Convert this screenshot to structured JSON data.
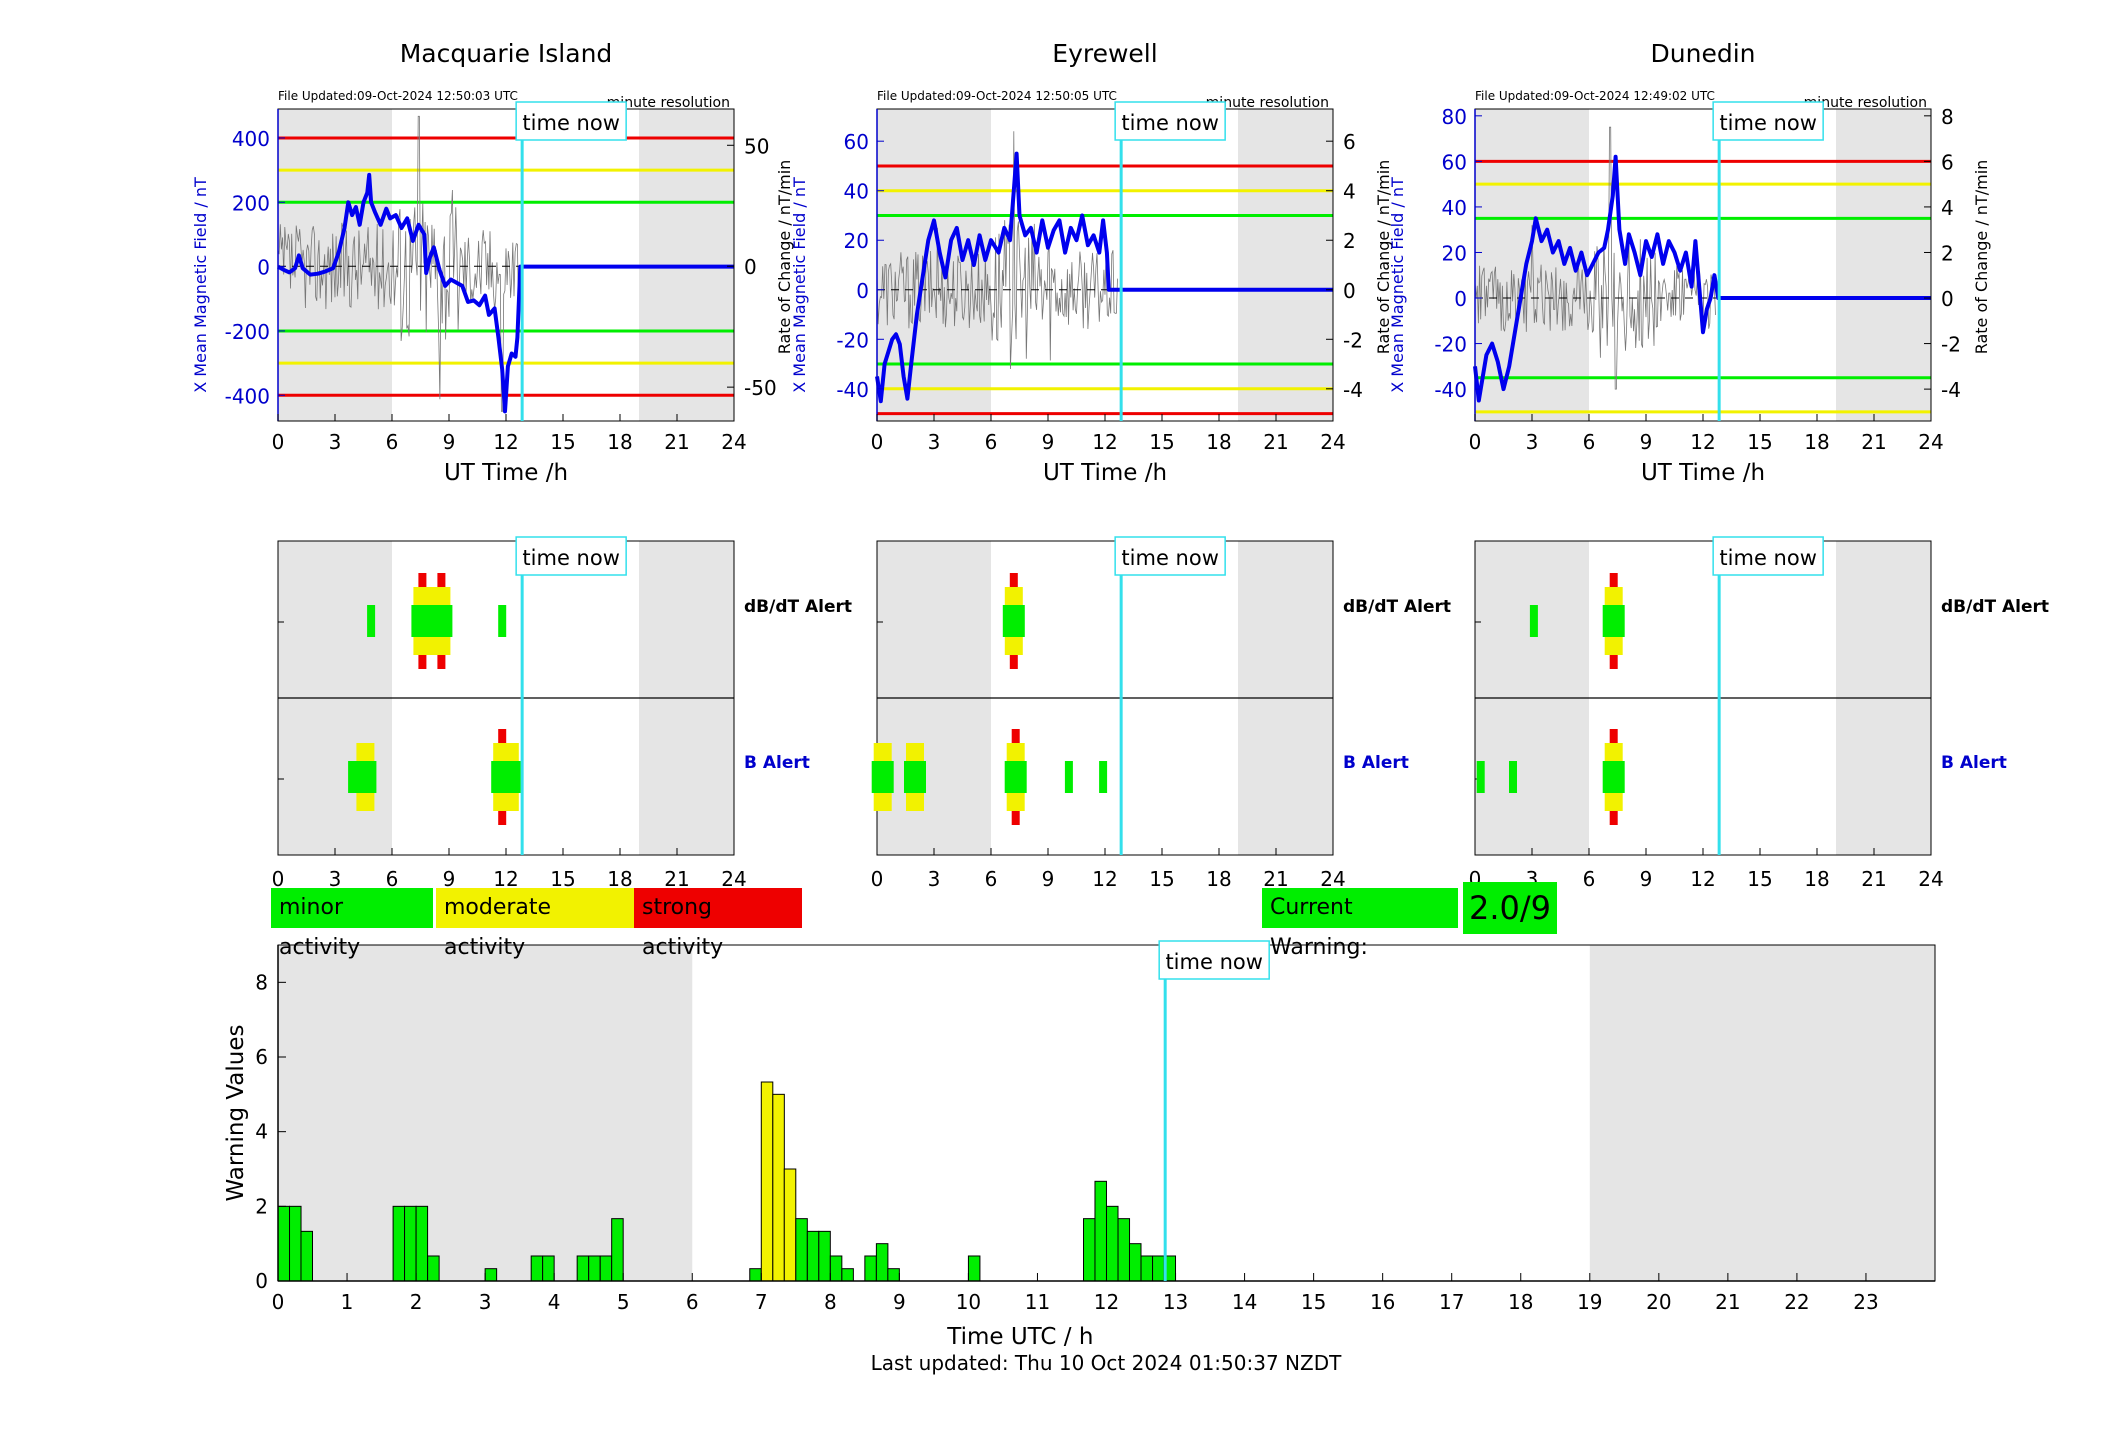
{
  "colors": {
    "night_shade": "#e5e5e5",
    "now_line": "#33e0ec",
    "field_line": "#0000ee",
    "red": "#ee0000",
    "yellow": "#f2f200",
    "green": "#00ee00",
    "axis_blue": "#0000cc"
  },
  "stations": [
    {
      "name": "Macquarie Island",
      "file_updated": "File Updated:09-Oct-2024 12:50:03 UTC",
      "resolution": "minute resolution",
      "left_label": "X Mean Magnetic Field / nT",
      "right_label": "Rate of Change / nT/min",
      "show_right_label": false,
      "ylim": [
        -480,
        490
      ],
      "yticks": [
        -400,
        -200,
        0,
        200,
        400
      ],
      "rlim": [
        -64,
        65
      ],
      "rticks": [
        -50,
        0,
        50
      ],
      "thresholds": {
        "red": [
          400,
          -400
        ],
        "yellow": [
          300,
          -300
        ],
        "green": [
          200,
          -200
        ]
      },
      "field": [
        [
          0,
          0
        ],
        [
          0.3,
          -10
        ],
        [
          0.6,
          -18
        ],
        [
          0.9,
          -5
        ],
        [
          1.1,
          35
        ],
        [
          1.3,
          -5
        ],
        [
          1.7,
          -25
        ],
        [
          2.1,
          -22
        ],
        [
          2.5,
          -15
        ],
        [
          2.9,
          -5
        ],
        [
          3.2,
          45
        ],
        [
          3.5,
          120
        ],
        [
          3.7,
          200
        ],
        [
          3.9,
          160
        ],
        [
          4.1,
          185
        ],
        [
          4.3,
          130
        ],
        [
          4.5,
          200
        ],
        [
          4.7,
          230
        ],
        [
          4.8,
          285
        ],
        [
          4.9,
          200
        ],
        [
          5.1,
          170
        ],
        [
          5.4,
          130
        ],
        [
          5.7,
          180
        ],
        [
          5.9,
          150
        ],
        [
          6.2,
          160
        ],
        [
          6.5,
          120
        ],
        [
          6.8,
          150
        ],
        [
          7.1,
          80
        ],
        [
          7.4,
          130
        ],
        [
          7.7,
          100
        ],
        [
          7.8,
          -20
        ],
        [
          8.0,
          30
        ],
        [
          8.2,
          60
        ],
        [
          8.5,
          -10
        ],
        [
          8.8,
          -60
        ],
        [
          9.1,
          -40
        ],
        [
          9.4,
          -50
        ],
        [
          9.7,
          -60
        ],
        [
          10.0,
          -110
        ],
        [
          10.3,
          -105
        ],
        [
          10.6,
          -120
        ],
        [
          10.9,
          -90
        ],
        [
          11.1,
          -150
        ],
        [
          11.4,
          -130
        ],
        [
          11.6,
          -220
        ],
        [
          11.8,
          -320
        ],
        [
          11.95,
          -450
        ],
        [
          12.1,
          -310
        ],
        [
          12.3,
          -270
        ],
        [
          12.5,
          -280
        ],
        [
          12.6,
          -220
        ],
        [
          12.75,
          0
        ],
        [
          24,
          0
        ]
      ],
      "rate_amp": 18,
      "rate_peak": [
        [
          7.4,
          62
        ],
        [
          8.5,
          -55
        ],
        [
          11.8,
          -60
        ]
      ],
      "dbdt_alerts": [
        {
          "t": 4.9,
          "level": 1
        },
        {
          "t": 7.6,
          "level": 3
        },
        {
          "t": 7.9,
          "level": 2
        },
        {
          "t": 8.2,
          "level": 2
        },
        {
          "t": 8.6,
          "level": 3
        },
        {
          "t": 11.8,
          "level": 1
        }
      ],
      "b_alerts": [
        {
          "t": 3.9,
          "level": 1
        },
        {
          "t": 4.6,
          "level": 2
        },
        {
          "t": 4.8,
          "level": 1
        },
        {
          "t": 11.8,
          "level": 3
        },
        {
          "t": 12.2,
          "level": 2
        }
      ]
    },
    {
      "name": "Eyrewell",
      "file_updated": "File Updated:09-Oct-2024 12:50:05 UTC",
      "resolution": "minute resolution",
      "left_label": "X Mean Magnetic Field / nT",
      "right_label": "Rate of Change / nT/min",
      "show_right_label": true,
      "ylim": [
        -53,
        73
      ],
      "yticks": [
        -40,
        -20,
        0,
        20,
        40,
        60
      ],
      "rlim": [
        -5.3,
        7.3
      ],
      "rticks": [
        -4,
        -2,
        0,
        2,
        4,
        6
      ],
      "thresholds": {
        "red": [
          50,
          -50
        ],
        "yellow": [
          40,
          -40
        ],
        "green": [
          30,
          -30
        ]
      },
      "field": [
        [
          0,
          -35
        ],
        [
          0.2,
          -45
        ],
        [
          0.4,
          -30
        ],
        [
          0.6,
          -25
        ],
        [
          0.8,
          -20
        ],
        [
          1.0,
          -18
        ],
        [
          1.2,
          -22
        ],
        [
          1.4,
          -35
        ],
        [
          1.6,
          -44
        ],
        [
          1.8,
          -30
        ],
        [
          2.1,
          -10
        ],
        [
          2.4,
          5
        ],
        [
          2.7,
          20
        ],
        [
          3.0,
          28
        ],
        [
          3.3,
          15
        ],
        [
          3.6,
          5
        ],
        [
          3.9,
          20
        ],
        [
          4.2,
          25
        ],
        [
          4.5,
          12
        ],
        [
          4.8,
          20
        ],
        [
          5.1,
          10
        ],
        [
          5.4,
          22
        ],
        [
          5.7,
          12
        ],
        [
          6.0,
          20
        ],
        [
          6.4,
          15
        ],
        [
          6.7,
          25
        ],
        [
          7.0,
          20
        ],
        [
          7.2,
          40
        ],
        [
          7.35,
          55
        ],
        [
          7.5,
          30
        ],
        [
          7.8,
          22
        ],
        [
          8.1,
          25
        ],
        [
          8.4,
          15
        ],
        [
          8.7,
          28
        ],
        [
          9.0,
          17
        ],
        [
          9.3,
          24
        ],
        [
          9.6,
          28
        ],
        [
          9.9,
          15
        ],
        [
          10.2,
          25
        ],
        [
          10.5,
          20
        ],
        [
          10.8,
          30
        ],
        [
          11.1,
          18
        ],
        [
          11.4,
          22
        ],
        [
          11.7,
          15
        ],
        [
          11.9,
          28
        ],
        [
          12.1,
          15
        ],
        [
          12.2,
          0
        ],
        [
          24,
          0
        ]
      ],
      "rate_amp": 1.6,
      "rate_peak": [
        [
          7.2,
          6.4
        ],
        [
          7.0,
          -3.2
        ],
        [
          3.2,
          2.5
        ]
      ],
      "dbdt_alerts": [
        {
          "t": 7.2,
          "level": 3
        }
      ],
      "b_alerts": [
        {
          "t": 0.3,
          "level": 2
        },
        {
          "t": 2.0,
          "level": 2
        },
        {
          "t": 7.3,
          "level": 3
        },
        {
          "t": 10.1,
          "level": 1
        },
        {
          "t": 11.9,
          "level": 1
        }
      ]
    },
    {
      "name": "Dunedin",
      "file_updated": "File Updated:09-Oct-2024 12:49:02 UTC",
      "resolution": "minute resolution",
      "left_label": "X Mean Magnetic Field / nT",
      "right_label": "Rate of Change / nT/min",
      "show_right_label": true,
      "ylim": [
        -54,
        83
      ],
      "yticks": [
        -40,
        -20,
        0,
        20,
        40,
        60,
        80
      ],
      "rlim": [
        -5.4,
        8.3
      ],
      "rticks": [
        -4,
        -2,
        0,
        2,
        4,
        6,
        8
      ],
      "thresholds": {
        "red": [
          60
        ],
        "yellow": [
          50,
          -50
        ],
        "green": [
          35,
          -35
        ]
      },
      "field": [
        [
          0,
          -30
        ],
        [
          0.2,
          -45
        ],
        [
          0.4,
          -35
        ],
        [
          0.6,
          -25
        ],
        [
          0.9,
          -20
        ],
        [
          1.2,
          -28
        ],
        [
          1.5,
          -40
        ],
        [
          1.8,
          -30
        ],
        [
          2.1,
          -15
        ],
        [
          2.4,
          0
        ],
        [
          2.7,
          15
        ],
        [
          3.0,
          25
        ],
        [
          3.2,
          35
        ],
        [
          3.5,
          25
        ],
        [
          3.8,
          30
        ],
        [
          4.1,
          20
        ],
        [
          4.4,
          25
        ],
        [
          4.7,
          15
        ],
        [
          5.0,
          22
        ],
        [
          5.3,
          12
        ],
        [
          5.6,
          20
        ],
        [
          5.9,
          10
        ],
        [
          6.2,
          15
        ],
        [
          6.5,
          20
        ],
        [
          6.8,
          22
        ],
        [
          7.0,
          30
        ],
        [
          7.25,
          45
        ],
        [
          7.4,
          62
        ],
        [
          7.6,
          30
        ],
        [
          7.9,
          15
        ],
        [
          8.1,
          28
        ],
        [
          8.4,
          20
        ],
        [
          8.7,
          10
        ],
        [
          9.0,
          25
        ],
        [
          9.3,
          18
        ],
        [
          9.6,
          28
        ],
        [
          9.9,
          15
        ],
        [
          10.2,
          25
        ],
        [
          10.5,
          20
        ],
        [
          10.8,
          12
        ],
        [
          11.1,
          20
        ],
        [
          11.4,
          5
        ],
        [
          11.6,
          25
        ],
        [
          11.8,
          5
        ],
        [
          12.0,
          -15
        ],
        [
          12.2,
          -5
        ],
        [
          12.4,
          0
        ],
        [
          12.6,
          10
        ],
        [
          12.8,
          0
        ],
        [
          24,
          0
        ]
      ],
      "rate_amp": 1.5,
      "rate_peak": [
        [
          7.1,
          7.5
        ],
        [
          7.4,
          -4.0
        ],
        [
          3.0,
          3.2
        ]
      ],
      "dbdt_alerts": [
        {
          "t": 3.1,
          "level": 1
        },
        {
          "t": 7.3,
          "level": 3
        }
      ],
      "b_alerts": [
        {
          "t": 0.3,
          "level": 1
        },
        {
          "t": 2.0,
          "level": 1
        },
        {
          "t": 7.3,
          "level": 3
        }
      ]
    }
  ],
  "common": {
    "xlabel": "UT Time /h",
    "xticks": [
      0,
      3,
      6,
      9,
      12,
      15,
      18,
      21,
      24
    ],
    "night_start_end": [
      [
        0,
        6
      ],
      [
        19,
        24
      ]
    ],
    "time_now": 12.85,
    "time_now_label": "time now",
    "dbdt_label": "dB/dT Alert",
    "b_label": "B Alert"
  },
  "activity_legend": {
    "minor": "minor activity",
    "moderate": "moderate activity",
    "strong": "strong activity"
  },
  "current_warning": {
    "label": "Current Warning:",
    "value": "2.0/9"
  },
  "chart_data": {
    "type": "bar",
    "xlabel": "Time UTC / h",
    "ylabel": "Warning Values",
    "xlim": [
      0,
      24
    ],
    "ylim": [
      0,
      9
    ],
    "xticks": [
      0,
      1,
      2,
      3,
      4,
      5,
      6,
      7,
      8,
      9,
      10,
      11,
      12,
      13,
      14,
      15,
      16,
      17,
      18,
      19,
      20,
      21,
      22,
      23
    ],
    "yticks": [
      0,
      2,
      4,
      6,
      8
    ],
    "bin_width_h": 0.1667,
    "night_ranges": [
      [
        0,
        6
      ],
      [
        19,
        24
      ]
    ],
    "time_now": 12.85,
    "bars": [
      {
        "t": 0.0,
        "v": 2.0
      },
      {
        "t": 0.167,
        "v": 2.0
      },
      {
        "t": 0.333,
        "v": 1.33
      },
      {
        "t": 1.667,
        "v": 2.0
      },
      {
        "t": 1.833,
        "v": 2.0
      },
      {
        "t": 2.0,
        "v": 2.0
      },
      {
        "t": 2.167,
        "v": 0.67
      },
      {
        "t": 3.0,
        "v": 0.33
      },
      {
        "t": 3.667,
        "v": 0.67
      },
      {
        "t": 3.833,
        "v": 0.67
      },
      {
        "t": 4.333,
        "v": 0.67
      },
      {
        "t": 4.5,
        "v": 0.67
      },
      {
        "t": 4.667,
        "v": 0.67
      },
      {
        "t": 4.833,
        "v": 1.67
      },
      {
        "t": 6.833,
        "v": 0.33
      },
      {
        "t": 7.0,
        "v": 5.33
      },
      {
        "t": 7.167,
        "v": 5.0
      },
      {
        "t": 7.333,
        "v": 3.0
      },
      {
        "t": 7.5,
        "v": 1.67
      },
      {
        "t": 7.667,
        "v": 1.33
      },
      {
        "t": 7.833,
        "v": 1.33
      },
      {
        "t": 8.0,
        "v": 0.67
      },
      {
        "t": 8.167,
        "v": 0.33
      },
      {
        "t": 8.5,
        "v": 0.67
      },
      {
        "t": 8.667,
        "v": 1.0
      },
      {
        "t": 8.833,
        "v": 0.33
      },
      {
        "t": 10.0,
        "v": 0.67
      },
      {
        "t": 11.667,
        "v": 1.67
      },
      {
        "t": 11.833,
        "v": 2.67
      },
      {
        "t": 12.0,
        "v": 2.0
      },
      {
        "t": 12.167,
        "v": 1.67
      },
      {
        "t": 12.333,
        "v": 1.0
      },
      {
        "t": 12.5,
        "v": 0.67
      },
      {
        "t": 12.667,
        "v": 0.67
      },
      {
        "t": 12.833,
        "v": 0.67
      }
    ],
    "moderate_threshold": 3.0
  },
  "footer": "Last updated: Thu 10 Oct 2024 01:50:37 NZDT"
}
